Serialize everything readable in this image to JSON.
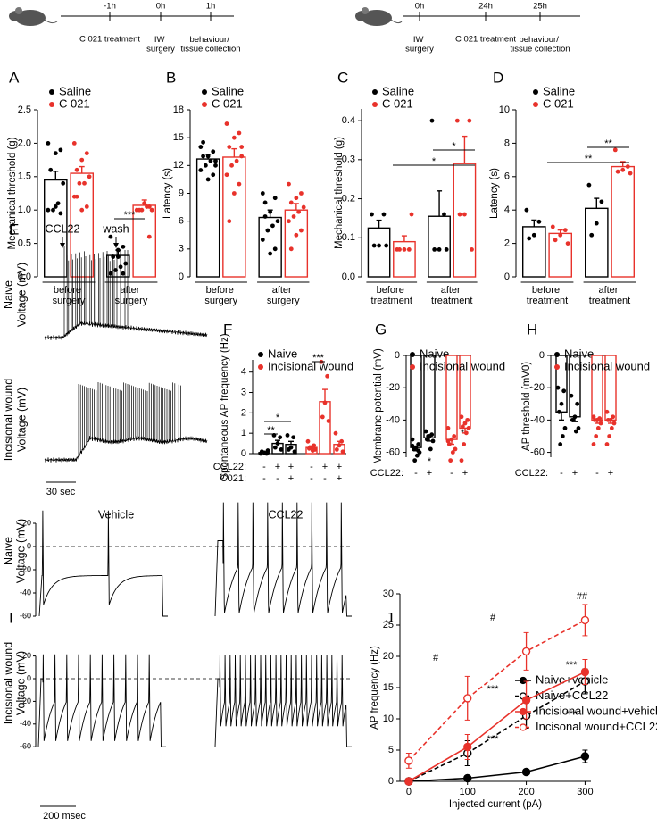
{
  "timelines": [
    {
      "ticks": [
        "-1h",
        "0h",
        "1h"
      ],
      "events": [
        "C 021 treatment",
        "IW\nsurgery",
        "behaviour/\ntissue collection"
      ]
    },
    {
      "ticks": [
        "0h",
        "24h",
        "25h"
      ],
      "events": [
        "IW\nsurgery",
        "C 021 treatment",
        "behaviour/\ntissue collection"
      ]
    }
  ],
  "chart_data": [
    {
      "panel": "A",
      "type": "bar",
      "ylabel": "Mechanical threshold (g)",
      "categories": [
        "before\nsurgery",
        "after\nsurgery"
      ],
      "series": [
        {
          "name": "Saline",
          "color": "#000000",
          "values": [
            1.45,
            0.32
          ],
          "errors": [
            0.13,
            0.08
          ],
          "points": [
            [
              2.0,
              1.9,
              1.85,
              1.6,
              1.4,
              1.1,
              1.0,
              1.0,
              0.95,
              1.05
            ],
            [
              0.6,
              0.45,
              0.4,
              0.3,
              0.2,
              0.15,
              0.1,
              0.05,
              0.05,
              0.3
            ]
          ]
        },
        {
          "name": "C 021",
          "color": "#e8322b",
          "values": [
            1.55,
            1.07
          ],
          "errors": [
            0.1,
            0.08
          ],
          "points": [
            [
              2.0,
              1.85,
              1.75,
              1.6,
              1.5,
              1.4,
              1.4,
              1.2,
              1.05,
              1.0,
              1.2
            ],
            [
              1.0,
              1.05,
              1.1,
              1.0,
              1.0,
              1.05,
              1.0,
              1.0,
              0.6,
              1.1
            ]
          ]
        }
      ],
      "ylim": [
        0,
        2.5
      ],
      "yticks": [
        {
          "value": 0,
          "label": "0.0"
        },
        0.5,
        {
          "value": 1,
          "label": "1.0"
        },
        1.5,
        {
          "value": 2,
          "label": "2.0"
        },
        2.5
      ],
      "annotations": [
        "***"
      ]
    },
    {
      "panel": "B",
      "type": "bar",
      "ylabel": "Latency (s)",
      "categories": [
        "before\nsurgery",
        "after\nsurgery"
      ],
      "series": [
        {
          "name": "Saline",
          "color": "#000000",
          "values": [
            12.7,
            6.4
          ],
          "errors": [
            0.5,
            0.8
          ],
          "points": [
            [
              14,
              13.5,
              13,
              13,
              12.5,
              12.5,
              12,
              11.5,
              11,
              10.5,
              14.5,
              12
            ],
            [
              9,
              8.5,
              7,
              6.5,
              6,
              5.5,
              5,
              4,
              3,
              2.5,
              8
            ]
          ]
        },
        {
          "name": "C 021",
          "color": "#e8322b",
          "values": [
            12.9,
            7.2
          ],
          "errors": [
            0.9,
            0.7
          ],
          "points": [
            [
              16.5,
              15.5,
              15,
              14,
              13,
              12.5,
              12,
              11,
              10,
              9,
              6,
              14
            ],
            [
              10,
              9,
              8.5,
              8,
              7.5,
              7,
              6.5,
              6,
              5,
              4.5,
              3
            ]
          ]
        }
      ],
      "ylim": [
        0,
        18
      ],
      "yticks": [
        0,
        3,
        6,
        9,
        12,
        15,
        18
      ],
      "annotations": []
    },
    {
      "panel": "C",
      "type": "bar",
      "ylabel": "Mechanical threshold (g)",
      "categories": [
        "before\ntreatment",
        "after\ntreatment"
      ],
      "series": [
        {
          "name": "Saline",
          "color": "#000000",
          "values": [
            0.125,
            0.155
          ],
          "errors": [
            0.02,
            0.065
          ],
          "points": [
            [
              0.16,
              0.16,
              0.08,
              0.08,
              0.08
            ],
            [
              0.4,
              0.16,
              0.07,
              0.07,
              0.07
            ]
          ]
        },
        {
          "name": "C 021",
          "color": "#e8322b",
          "values": [
            0.09,
            0.29
          ],
          "errors": [
            0.015,
            0.07
          ],
          "points": [
            [
              0.07,
              0.07,
              0.07,
              0.07,
              0.16
            ],
            [
              0.4,
              0.4,
              0.16,
              0.16,
              0.07
            ]
          ]
        }
      ],
      "ylim": [
        0,
        0.43
      ],
      "yticks": [
        {
          "value": 0,
          "label": "0.0"
        },
        0.1,
        0.2,
        0.3,
        0.4
      ],
      "annotations": [
        "*",
        "*"
      ]
    },
    {
      "panel": "D",
      "type": "bar",
      "ylabel": "Latency (s)",
      "categories": [
        "before\ntreatment",
        "after\ntreatment"
      ],
      "series": [
        {
          "name": "Saline",
          "color": "#000000",
          "values": [
            3.0,
            4.1
          ],
          "errors": [
            0.4,
            0.6
          ],
          "points": [
            [
              4,
              3.3,
              2.5,
              2.3
            ],
            [
              5.5,
              4.5,
              3.2,
              2.5
            ]
          ]
        },
        {
          "name": "C 021",
          "color": "#e8322b",
          "values": [
            2.6,
            6.6
          ],
          "errors": [
            0.2,
            0.3
          ],
          "points": [
            [
              3,
              2.8,
              2.5,
              2.2,
              2.0
            ],
            [
              7.6,
              6.6,
              6.4,
              6.3,
              6.2
            ]
          ]
        }
      ],
      "ylim": [
        0,
        10
      ],
      "yticks": [
        0,
        2,
        4,
        6,
        8,
        10
      ],
      "annotations": [
        "**",
        "**"
      ]
    },
    {
      "panel": "F",
      "type": "bar",
      "ylabel": "Spontaneous AP frequency (Hz)",
      "conditions": [
        {
          "label": "CCL22:",
          "values": [
            "-",
            "+",
            "+"
          ]
        },
        {
          "label": "C021:",
          "values": [
            "-",
            "-",
            "+"
          ]
        }
      ],
      "series": [
        {
          "name": "Naive",
          "color": "#000000",
          "values": [
            0.05,
            0.5,
            0.45
          ],
          "errors": [
            0.03,
            0.15,
            0.15
          ],
          "points": [
            [
              0,
              0,
              0.05,
              0.1,
              0.15
            ],
            [
              0.9,
              0.8,
              0.5,
              0.3,
              0.2
            ],
            [
              0.9,
              0.8,
              0.3,
              0.2,
              0.1
            ]
          ]
        },
        {
          "name": "Incisional wound",
          "color": "#e8322b",
          "values": [
            0.3,
            2.55,
            0.45
          ],
          "errors": [
            0.08,
            0.6,
            0.15
          ],
          "points": [
            [
              0.6,
              0.4,
              0.3,
              0.25,
              0.2,
              0.15
            ],
            [
              4.5,
              3.8,
              2.5,
              1.8,
              1.6
            ],
            [
              1.0,
              0.6,
              0.4,
              0.2,
              0.1
            ]
          ]
        }
      ],
      "ylim": [
        0,
        4.6
      ],
      "yticks": [
        0,
        1,
        2,
        3,
        4
      ],
      "annotations": [
        "*",
        "**",
        "***"
      ]
    },
    {
      "panel": "G",
      "type": "bar",
      "ylabel": "Membrane potential (mV)",
      "conditions": [
        {
          "label": "CCL22:",
          "values": [
            "-",
            "+"
          ]
        }
      ],
      "series": [
        {
          "name": "Naive",
          "color": "#000000",
          "values": [
            -57,
            -51
          ],
          "errors": [
            2,
            2
          ],
          "points": [
            [
              -52,
              -55,
              -57,
              -58,
              -60,
              -62,
              -65,
              -56,
              -59
            ],
            [
              -47,
              -49,
              -50,
              -52,
              -53,
              -58,
              -50
            ]
          ]
        },
        {
          "name": "Incisional wound",
          "color": "#e8322b",
          "values": [
            -52,
            -45
          ],
          "errors": [
            3,
            3
          ],
          "points": [
            [
              -45,
              -50,
              -52,
              -55,
              -58,
              -60,
              -65,
              -53
            ],
            [
              -38,
              -40,
              -42,
              -44,
              -45,
              -48,
              -55,
              -65
            ]
          ]
        }
      ],
      "ylim": [
        -63,
        0
      ],
      "yticks": [
        0,
        -20,
        -40,
        -60
      ],
      "annotations": [
        "*",
        "*"
      ]
    },
    {
      "panel": "H",
      "type": "bar",
      "ylabel": "AP threshold (mV0)",
      "conditions": [
        {
          "label": "CCL22:",
          "values": [
            "-",
            "+"
          ]
        }
      ],
      "series": [
        {
          "name": "Naive",
          "color": "#000000",
          "values": [
            -35,
            -38
          ],
          "errors": [
            5,
            3
          ],
          "points": [
            [
              -20,
              -22,
              -30,
              -35,
              -45,
              -50,
              -55
            ],
            [
              -25,
              -30,
              -38,
              -40,
              -45,
              -47
            ]
          ]
        },
        {
          "name": "Incisional wound",
          "color": "#e8322b",
          "values": [
            -40,
            -40
          ],
          "errors": [
            2,
            2
          ],
          "points": [
            [
              -38,
              -39,
              -40,
              -40,
              -42,
              -45,
              -50,
              -55
            ],
            [
              -35,
              -38,
              -40,
              -40,
              -42,
              -45,
              -50,
              -55
            ]
          ]
        }
      ],
      "ylim": [
        -63,
        0
      ],
      "yticks": [
        0,
        -20,
        -40,
        -60
      ],
      "annotations": []
    },
    {
      "panel": "J",
      "type": "line",
      "xlabel": "Injected current (pA)",
      "ylabel": "AP frequency (Hz)",
      "x": [
        0,
        100,
        200,
        300
      ],
      "series": [
        {
          "name": "Naive+vehicle",
          "color": "#000000",
          "dashed": false,
          "marker": "filled",
          "values": [
            0,
            0.5,
            1.5,
            4
          ],
          "errors": [
            0.3,
            0.3,
            0.3,
            1
          ]
        },
        {
          "name": "Naive+CCL22",
          "color": "#000000",
          "dashed": true,
          "marker": "open",
          "values": [
            0,
            4.5,
            10.5,
            16
          ],
          "errors": [
            0.5,
            2,
            2,
            2
          ]
        },
        {
          "name": "Incisional wound+vehicle",
          "color": "#e8322b",
          "dashed": false,
          "marker": "filled",
          "values": [
            0,
            5.5,
            13,
            17.5
          ],
          "errors": [
            0.5,
            2,
            3,
            2
          ]
        },
        {
          "name": "Incisonal wound+CCL22",
          "color": "#e8322b",
          "dashed": true,
          "marker": "open",
          "values": [
            3.3,
            13.3,
            20.8,
            25.8
          ],
          "errors": [
            1.2,
            3.5,
            3,
            2.5
          ]
        }
      ],
      "xlim": [
        -15,
        310
      ],
      "xticks": [
        0,
        100,
        200,
        300
      ],
      "ylim": [
        0,
        30
      ],
      "yticks": [
        0,
        5,
        10,
        15,
        20,
        25,
        30
      ],
      "annotations": [
        "#",
        "#",
        "##",
        "***",
        "***",
        "***",
        "***"
      ]
    }
  ],
  "traces_E": {
    "panel": "E",
    "markers": [
      "CCL22",
      "wash"
    ],
    "rows": [
      {
        "name": "Naive",
        "ylabel": "Voltage (mV)"
      },
      {
        "name": "Incisional wound",
        "ylabel": "Voltage (mV)"
      }
    ],
    "scale": "30 sec"
  },
  "traces_I": {
    "panel": "I",
    "columns": [
      "Vehicle",
      "CCL22"
    ],
    "rows": [
      {
        "name": "Naive",
        "ylabel": "Voltage (mV)"
      },
      {
        "name": "Incisional wound",
        "ylabel": "Voltage (mV)"
      }
    ],
    "yticks": [
      20,
      0,
      -20,
      -40,
      -60
    ],
    "scale": "200 msec"
  }
}
